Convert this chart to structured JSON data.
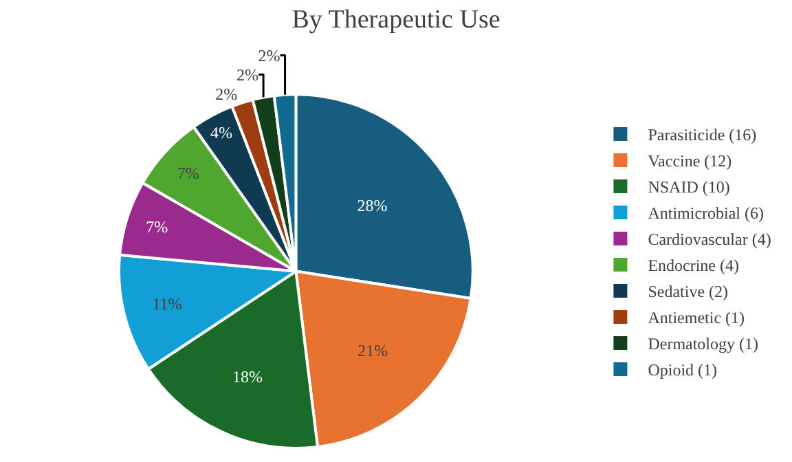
{
  "chart_data": {
    "type": "pie",
    "title": "By Therapeutic Use",
    "categories": [
      "Parasiticide (16)",
      "Vaccine (12)",
      "NSAID (10)",
      "Antimicrobial (6)",
      "Cardiovascular (4)",
      "Endocrine (4)",
      "Sedative (2)",
      "Antiemetic (1)",
      "Dermatology (1)",
      "Opioid (1)"
    ],
    "values": [
      28,
      21,
      18,
      11,
      7,
      7,
      4,
      2,
      2,
      2
    ],
    "value_labels": [
      "28%",
      "21%",
      "18%",
      "11%",
      "7%",
      "7%",
      "4%",
      "2%",
      "2%",
      "2%"
    ],
    "colors": [
      "#175d80",
      "#e8722f",
      "#1a6b29",
      "#129fd6",
      "#9b2a8e",
      "#4fa72f",
      "#0f3a52",
      "#9e3c12",
      "#123f1a",
      "#136a8f"
    ],
    "legend": "right"
  }
}
